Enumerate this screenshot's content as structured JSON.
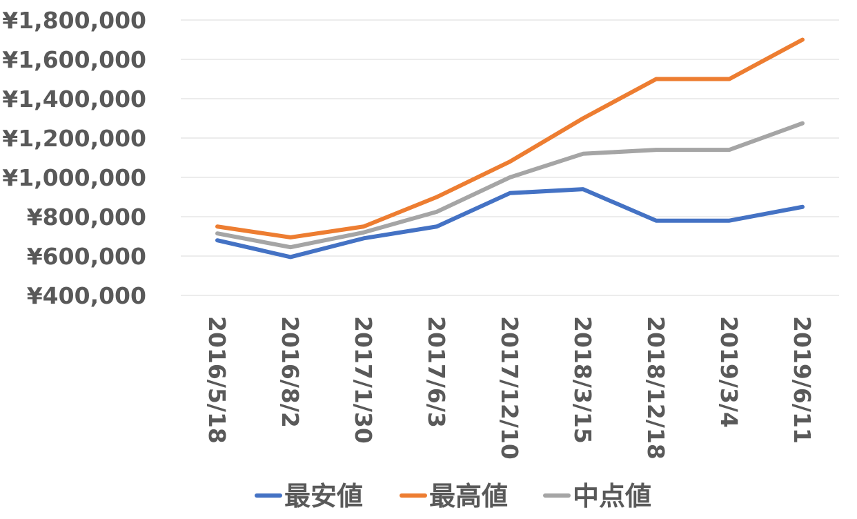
{
  "chart_data": {
    "type": "line",
    "categories": [
      "2016/5/18",
      "2016/8/2",
      "2017/1/30",
      "2017/6/3",
      "2017/12/10",
      "2018/3/15",
      "2018/12/18",
      "2019/3/4",
      "2019/6/11"
    ],
    "series": [
      {
        "name": "最安値",
        "color": "#4472C4",
        "values": [
          680000,
          595000,
          690000,
          750000,
          920000,
          940000,
          780000,
          780000,
          850000
        ]
      },
      {
        "name": "最高値",
        "color": "#ED7D31",
        "values": [
          750000,
          695000,
          750000,
          900000,
          1080000,
          1300000,
          1500000,
          1500000,
          1700000
        ]
      },
      {
        "name": "中点値",
        "color": "#A5A5A5",
        "values": [
          715000,
          645000,
          720000,
          825000,
          1000000,
          1120000,
          1140000,
          1140000,
          1275000
        ]
      }
    ],
    "yticks": [
      "¥400,000",
      "¥600,000",
      "¥800,000",
      "¥1,000,000",
      "¥1,200,000",
      "¥1,400,000",
      "¥1,600,000",
      "¥1,800,000"
    ],
    "ylim": [
      400000,
      1800000
    ],
    "grid": true,
    "legend_position": "bottom",
    "title": "",
    "xlabel": "",
    "ylabel": ""
  }
}
